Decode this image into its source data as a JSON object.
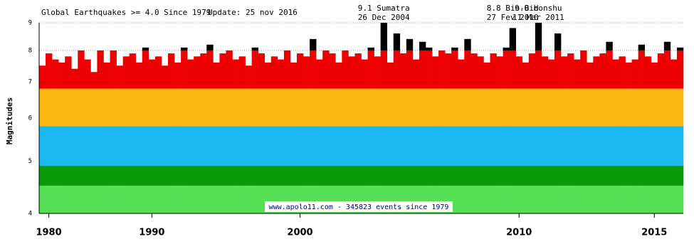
{
  "chart_data": {
    "type": "bar",
    "title": "Global Earthquakes >= 4.0 Since 1979",
    "subtitle": "Update: 25 nov 2016",
    "y_label": "Magnitudes",
    "footer": "www.apolo11.com - 345823 events since 1979",
    "categories": [
      null,
      "1980",
      null,
      null,
      null,
      null,
      null,
      null,
      null,
      null,
      null,
      null,
      null,
      null,
      null,
      null,
      null,
      "1990",
      null,
      null,
      null,
      null,
      null,
      null,
      null,
      null,
      null,
      null,
      null,
      null,
      null,
      null,
      null,
      null,
      null,
      null,
      null,
      null,
      null,
      null,
      "2000",
      null,
      null,
      null,
      null,
      null,
      null,
      null,
      null,
      null,
      null,
      null,
      null,
      null,
      null,
      null,
      null,
      null,
      null,
      null,
      null,
      null,
      null,
      null,
      null,
      null,
      null,
      null,
      null,
      null,
      null,
      null,
      null,
      null,
      "2010",
      null,
      null,
      null,
      null,
      null,
      null,
      null,
      null,
      null,
      null,
      null,
      null,
      null,
      null,
      null,
      null,
      null,
      null,
      null,
      null,
      "2015",
      null,
      null,
      null,
      null
    ],
    "values": [
      7.5,
      7.9,
      7.7,
      7.6,
      7.8,
      7.4,
      8.0,
      7.7,
      7.3,
      8.0,
      7.6,
      8.0,
      7.5,
      7.8,
      7.9,
      7.6,
      8.1,
      7.7,
      7.8,
      7.5,
      7.9,
      7.6,
      8.1,
      7.7,
      7.8,
      7.9,
      8.2,
      7.6,
      7.9,
      8.0,
      7.7,
      7.8,
      7.5,
      8.1,
      7.9,
      7.6,
      7.8,
      7.7,
      8.0,
      7.6,
      7.9,
      7.8,
      8.4,
      7.7,
      8.0,
      7.9,
      7.6,
      8.0,
      7.8,
      7.9,
      7.7,
      8.1,
      7.8,
      9.1,
      7.6,
      8.6,
      7.9,
      8.4,
      7.7,
      8.3,
      8.1,
      7.8,
      8.0,
      7.9,
      8.1,
      7.7,
      8.4,
      7.9,
      7.8,
      7.6,
      7.9,
      7.8,
      8.1,
      8.8,
      7.8,
      7.6,
      7.9,
      9.0,
      7.8,
      7.7,
      8.6,
      7.8,
      7.9,
      7.7,
      8.0,
      7.6,
      7.8,
      7.9,
      8.3,
      7.7,
      7.8,
      7.6,
      7.7,
      8.2,
      7.8,
      7.6,
      7.9,
      8.3,
      7.7,
      8.1
    ],
    "color_bands": [
      {
        "from": 4,
        "color": "#55e055"
      },
      {
        "from": 4.5,
        "color": "#0a9a0a"
      },
      {
        "from": 4.9,
        "color": "#1ab8f0"
      },
      {
        "from": 5.8,
        "color": "#fbb812"
      },
      {
        "from": 6.8,
        "color": "#ee0000"
      },
      {
        "from": 8,
        "color": "#000000"
      }
    ],
    "ylim": [
      4,
      9
    ],
    "yticks": [
      4,
      5,
      6,
      7,
      8,
      9
    ],
    "log_scale": true,
    "grid": true,
    "annotations": [
      {
        "point": 53,
        "lines": [
          "9.1 Sumatra",
          "26 Dec 2004"
        ]
      },
      {
        "point": 73,
        "lines": [
          "8.8 Bio-Bio",
          "27 Fev 2010"
        ]
      },
      {
        "point": 77,
        "lines": [
          "9.0 Honshu",
          "11 Mar 2011"
        ]
      }
    ]
  }
}
